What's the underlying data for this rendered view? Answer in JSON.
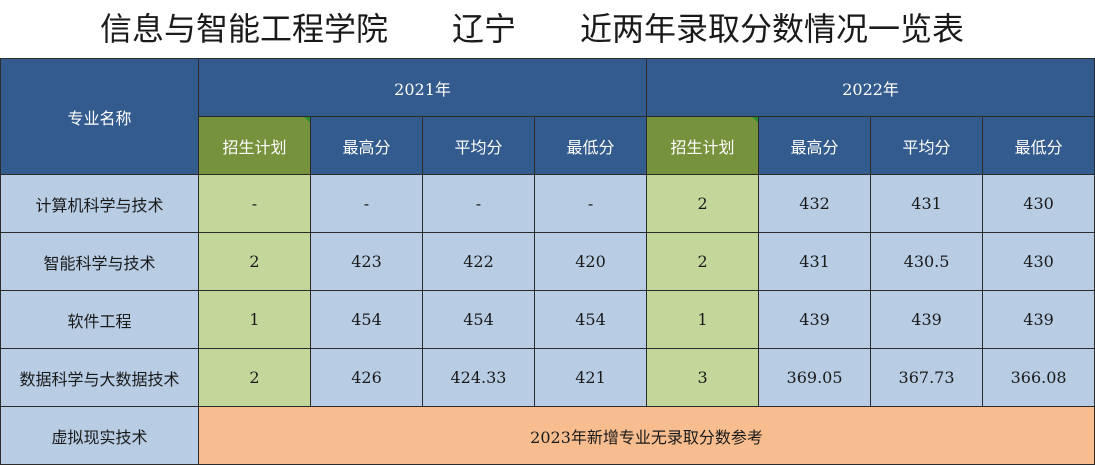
{
  "title": "信息与智能工程学院　　辽宁　　近两年录取分数情况一览表",
  "header": {
    "major_label": "专业名称",
    "years": [
      "2021年",
      "2022年"
    ],
    "columns": [
      "招生计划",
      "最高分",
      "平均分",
      "最低分"
    ]
  },
  "rows": [
    {
      "major": "计算机科学与技术",
      "y2021": [
        "-",
        "-",
        "-",
        "-"
      ],
      "y2022": [
        "2",
        "432",
        "431",
        "430"
      ]
    },
    {
      "major": "智能科学与技术",
      "y2021": [
        "2",
        "423",
        "422",
        "420"
      ],
      "y2022": [
        "2",
        "431",
        "430.5",
        "430"
      ]
    },
    {
      "major": "软件工程",
      "y2021": [
        "1",
        "454",
        "454",
        "454"
      ],
      "y2022": [
        "1",
        "439",
        "439",
        "439"
      ]
    },
    {
      "major": "数据科学与大数据技术",
      "y2021": [
        "2",
        "426",
        "424.33",
        "421"
      ],
      "y2022": [
        "3",
        "369.05",
        "367.73",
        "366.08"
      ]
    }
  ],
  "last_row": {
    "major": "虚拟现实技术",
    "note": "2023年新增专业无录取分数参考"
  },
  "colors": {
    "header": "#335b8e",
    "plan_header": "#76923c",
    "body": "#b8cce4",
    "plan_body": "#c4d79b",
    "note": "#f8bd8f"
  }
}
